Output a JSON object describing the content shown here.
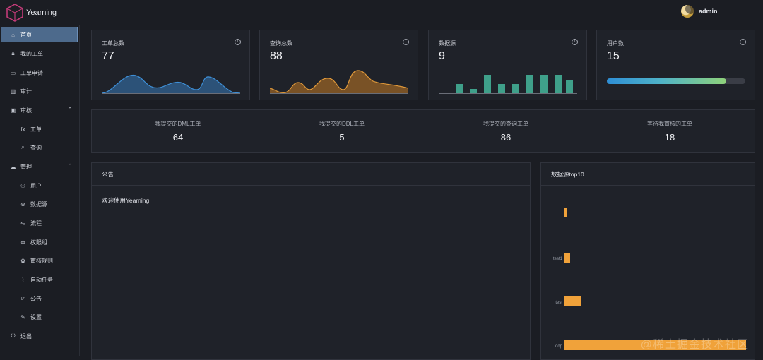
{
  "app": {
    "title": "Yearning"
  },
  "header": {
    "username": "admin",
    "avatar_icon": "moon-icon"
  },
  "sidebar": {
    "items": [
      {
        "label": "首页",
        "icon": "home-icon",
        "active": true
      },
      {
        "label": "我的工单",
        "icon": "lock-icon"
      },
      {
        "label": "工单申请",
        "icon": "monitor-icon"
      },
      {
        "label": "审计",
        "icon": "chart-icon"
      },
      {
        "label": "审核",
        "icon": "review-icon",
        "expanded": true
      },
      {
        "label": "工单",
        "icon": "fx-icon",
        "sub": true
      },
      {
        "label": "查询",
        "icon": "search-icon",
        "sub": true
      },
      {
        "label": "管理",
        "icon": "cloud-icon",
        "expanded": true
      },
      {
        "label": "用户",
        "icon": "user-icon",
        "sub": true
      },
      {
        "label": "数据源",
        "icon": "datasource-icon",
        "sub": true
      },
      {
        "label": "流程",
        "icon": "flow-icon",
        "sub": true
      },
      {
        "label": "权限组",
        "icon": "permission-icon",
        "sub": true
      },
      {
        "label": "审核规则",
        "icon": "rules-icon",
        "sub": true
      },
      {
        "label": "自动任务",
        "icon": "paperclip-icon",
        "sub": true
      },
      {
        "label": "公告",
        "icon": "announce-icon",
        "sub": true
      },
      {
        "label": "设置",
        "icon": "settings-icon",
        "sub": true
      },
      {
        "label": "退出",
        "icon": "logout-icon"
      }
    ]
  },
  "cards": [
    {
      "title": "工单总数",
      "value": "77"
    },
    {
      "title": "查询总数",
      "value": "88"
    },
    {
      "title": "数据源",
      "value": "9"
    },
    {
      "title": "用户数",
      "value": "15",
      "progress": 0.86
    }
  ],
  "stats": [
    {
      "label": "我提交的DML工单",
      "value": "64"
    },
    {
      "label": "我提交的DDL工单",
      "value": "5"
    },
    {
      "label": "我提交的查询工单",
      "value": "86"
    },
    {
      "label": "等待我审核的工单",
      "value": "18"
    }
  ],
  "notice": {
    "title": "公告",
    "text": "欢迎使用Yearning"
  },
  "colors": {
    "line1": "#3e8fd6",
    "line2": "#e0993a",
    "bars": "#3fa08a",
    "accent": "#f0a23a"
  },
  "chart_data": {
    "type": "bar",
    "title": "数据源top10",
    "orientation": "horizontal",
    "categories": [
      "",
      "test1",
      "test",
      "ddp"
    ],
    "values": [
      1,
      2,
      6,
      67
    ]
  },
  "watermark": "@稀土掘金技术社区"
}
